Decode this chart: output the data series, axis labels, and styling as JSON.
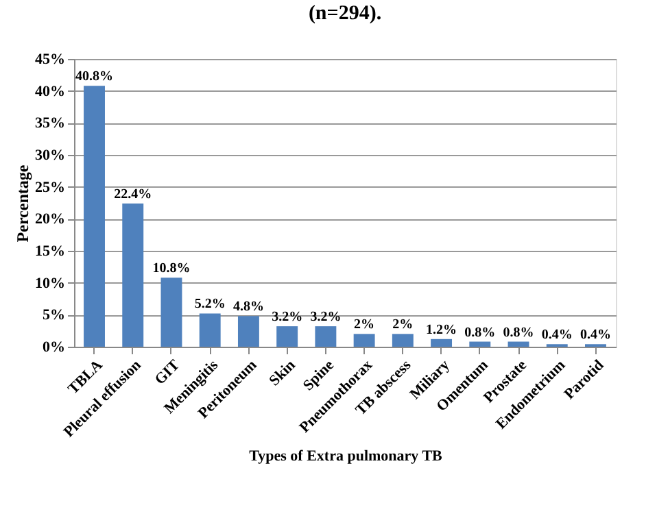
{
  "chart_data": {
    "type": "bar",
    "title": "(n=294).",
    "xlabel": "Types of Extra pulmonary TB",
    "ylabel": "Percentage",
    "categories": [
      "TBLA",
      "Pleural effusion",
      "GIT",
      "Meningitis",
      "Peritoneum",
      "Skin",
      "Spine",
      "Pneumothorax",
      "TB abscess",
      "Miliary",
      "Omentum",
      "Prostate",
      "Endometrium",
      "Parotid"
    ],
    "values": [
      40.8,
      22.4,
      10.8,
      5.2,
      4.8,
      3.2,
      3.2,
      2,
      2,
      1.2,
      0.8,
      0.8,
      0.4,
      0.4
    ],
    "value_labels": [
      "40.8%",
      "22.4%",
      "10.8%",
      "5.2%",
      "4.8%",
      "3.2%",
      "3.2%",
      "2%",
      "2%",
      "1.2%",
      "0.8%",
      "0.8%",
      "0.4%",
      "0.4%"
    ],
    "color": "#4f81bd",
    "ylim": [
      0,
      45
    ],
    "yticks": [
      {
        "value": 0,
        "label": "0%"
      },
      {
        "value": 5,
        "label": "5%"
      },
      {
        "value": 10,
        "label": "10%"
      },
      {
        "value": 15,
        "label": "15%"
      },
      {
        "value": 20,
        "label": "20%"
      },
      {
        "value": 25,
        "label": "25%"
      },
      {
        "value": 30,
        "label": "30%"
      },
      {
        "value": 35,
        "label": "35%"
      },
      {
        "value": 40,
        "label": "40%"
      },
      {
        "value": 45,
        "label": "45%"
      }
    ],
    "grid": "y"
  }
}
